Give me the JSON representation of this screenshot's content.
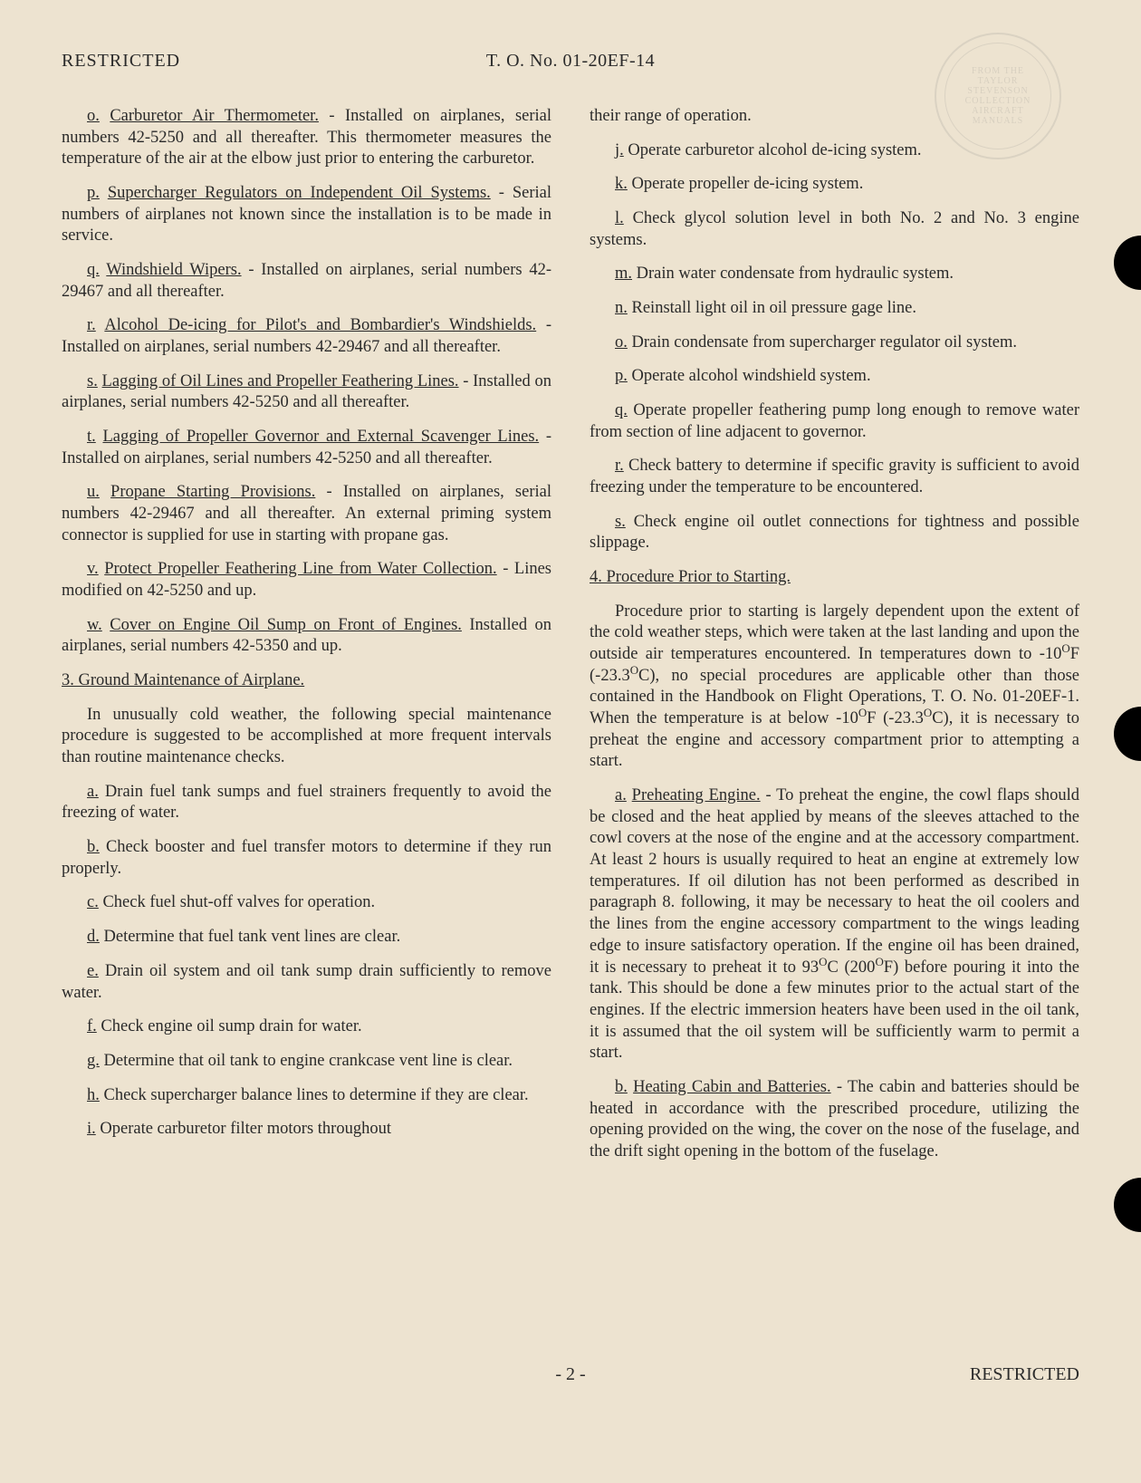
{
  "header": {
    "left": "RESTRICTED",
    "center": "T. O. No. 01-20EF-14"
  },
  "stamp": {
    "line1": "FROM THE",
    "line2": "TAYLOR",
    "line3": "STEVENSON",
    "line4": "COLLECTION",
    "line5": "AIRCRAFT",
    "line6": "MANUALS"
  },
  "col1": {
    "p_o_letter": "o.",
    "p_o_title": "Carburetor Air Thermometer.",
    "p_o_text": " - Installed on airplanes, serial numbers 42-5250 and all thereafter. This thermometer measures the temperature of the air at the elbow just prior to entering the carburetor.",
    "p_p_letter": "p.",
    "p_p_title": "Supercharger Regulators on Independent Oil Systems.",
    "p_p_text": " - Serial numbers of airplanes not known since the installation is to be made in service.",
    "p_q_letter": "q.",
    "p_q_title": "Windshield Wipers.",
    "p_q_text": " - Installed on airplanes, serial numbers 42-29467 and all thereafter.",
    "p_r_letter": "r.",
    "p_r_title": "Alcohol De-icing for Pilot's and Bombardier's Windshields.",
    "p_r_text": " - Installed on airplanes, serial numbers 42-29467 and all thereafter.",
    "p_s_letter": "s.",
    "p_s_title": "Lagging of Oil Lines and Propeller Feathering Lines.",
    "p_s_text": " - Installed on airplanes, serial numbers 42-5250 and all thereafter.",
    "p_t_letter": "t.",
    "p_t_title": "Lagging of Propeller Governor and External Scavenger Lines.",
    "p_t_text": " - Installed on airplanes, serial numbers 42-5250 and all thereafter.",
    "p_u_letter": "u.",
    "p_u_title": "Propane Starting Provisions.",
    "p_u_text": " - Installed on airplanes, serial numbers 42-29467 and all thereafter. An external priming system connector is supplied for use in starting with propane gas.",
    "p_v_letter": "v.",
    "p_v_title": "Protect Propeller Feathering Line from Water Collection.",
    "p_v_text": " - Lines modified on 42-5250 and up.",
    "p_w_letter": "w.",
    "p_w_title": "Cover on Engine Oil Sump on Front of Engines.",
    "p_w_text": " Installed on airplanes, serial numbers 42-5350 and up.",
    "s3_title": "3. Ground Maintenance of Airplane.",
    "s3_intro": "In unusually cold weather, the following special maintenance procedure is suggested to be accomplished at more frequent intervals than routine maintenance checks.",
    "s3_a_letter": "a.",
    "s3_a_text": " Drain fuel tank sumps and fuel strainers frequently to avoid the freezing of water.",
    "s3_b_letter": "b.",
    "s3_b_text": " Check booster and fuel transfer motors to determine if they run properly.",
    "s3_c_letter": "c.",
    "s3_c_text": " Check fuel shut-off valves for operation.",
    "s3_d_letter": "d.",
    "s3_d_text": " Determine that fuel tank vent lines are clear.",
    "s3_e_letter": "e.",
    "s3_e_text": " Drain oil system and oil tank sump drain sufficiently to remove water.",
    "s3_f_letter": "f.",
    "s3_f_text": " Check engine oil sump drain for water.",
    "s3_g_letter": "g.",
    "s3_g_text": " Determine that oil tank to engine crankcase vent line is clear.",
    "s3_h_letter": "h.",
    "s3_h_text": " Check supercharger balance lines to determine if they are clear.",
    "s3_i_letter": "i.",
    "s3_i_text": " Operate carburetor filter motors throughout"
  },
  "col2": {
    "cont": "their range of operation.",
    "j_letter": "j.",
    "j_text": " Operate carburetor alcohol de-icing system.",
    "k_letter": "k.",
    "k_text": " Operate propeller de-icing system.",
    "l_letter": "l.",
    "l_text": " Check glycol solution level in both No. 2 and No. 3 engine systems.",
    "m_letter": "m.",
    "m_text": " Drain water condensate from hydraulic system.",
    "n_letter": "n.",
    "n_text": " Reinstall light oil in oil pressure gage line.",
    "o_letter": "o.",
    "o_text": " Drain condensate from supercharger regulator oil system.",
    "p_letter": "p.",
    "p_text": " Operate alcohol windshield system.",
    "q_letter": "q.",
    "q_text": " Operate propeller feathering pump long enough to remove water from section of line adjacent to governor.",
    "r_letter": "r.",
    "r_text": " Check battery to determine if specific gravity is sufficient to avoid freezing under the temperature to be encountered.",
    "s_letter": "s.",
    "s_text": " Check engine oil outlet connections for tightness and possible slippage.",
    "s4_title": "4. Procedure Prior to Starting.",
    "s4_intro_a": "Procedure prior to starting is largely dependent upon the extent of the cold weather steps, which were taken at the last landing and upon the outside air temperatures encountered. In temperatures down to -10",
    "s4_intro_b": "F (-23.3",
    "s4_intro_c": "C), no special procedures are applicable other than those contained in the Handbook on Flight Operations, T. O. No. 01-20EF-1. When the temperature is at below -10",
    "s4_intro_d": "F (-23.3",
    "s4_intro_e": "C), it is necessary to preheat the engine and accessory compartment prior to attempting a start.",
    "s4_a_letter": "a.",
    "s4_a_title": "Preheating Engine.",
    "s4_a_text_a": " - To preheat the engine, the cowl flaps should be closed and the heat applied by means of the sleeves attached to the cowl covers at the nose of the engine and at the accessory compartment. At least 2 hours is usually required to heat an engine at extremely low temperatures. If oil dilution has not been performed as described in paragraph 8. following, it may be necessary to heat the oil coolers and the lines from the engine accessory compartment to the wings leading edge to insure satisfactory operation. If the engine oil has been drained, it is necessary to preheat it to 93",
    "s4_a_text_b": "C (200",
    "s4_a_text_c": "F) before pouring it into the tank. This should be done a few minutes prior to the actual start of the engines. If the electric immersion heaters have been used in the oil tank, it is assumed that the oil system will be sufficiently warm to permit a start.",
    "s4_b_letter": "b.",
    "s4_b_title": "Heating Cabin and Batteries.",
    "s4_b_text": " - The cabin and batteries should be heated in accordance with the prescribed procedure, utilizing the opening provided on the wing, the cover on the nose of the fuselage, and the drift sight opening in the bottom of the fuselage."
  },
  "footer": {
    "center": "- 2 -",
    "right": "RESTRICTED"
  }
}
